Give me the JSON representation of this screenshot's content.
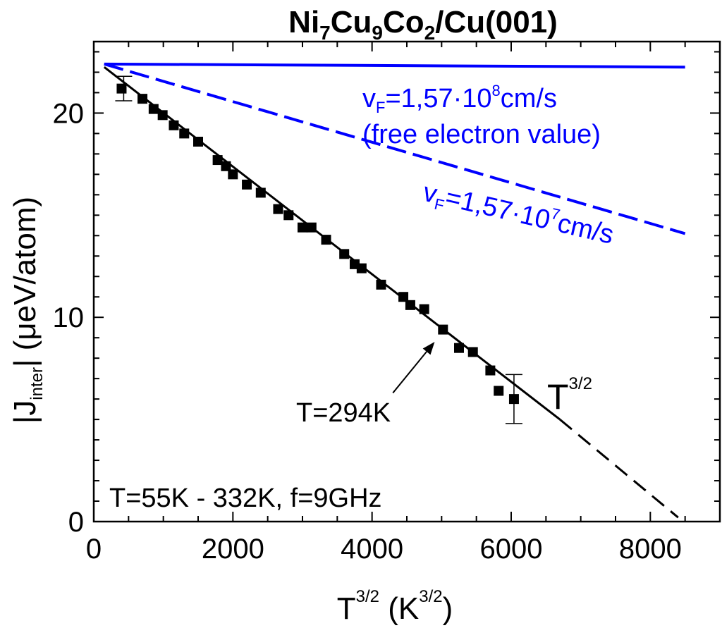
{
  "chart_data": {
    "type": "scatter",
    "title": {
      "base": "Ni",
      "parts": [
        {
          "text": "Ni",
          "sub": "7"
        },
        {
          "text": "Cu",
          "sub": "9"
        },
        {
          "text": "Co",
          "sub": "2"
        },
        {
          "text": "/Cu(001)",
          "sub": ""
        }
      ]
    },
    "xlabel": {
      "main": "T",
      "sup": "3/2",
      "rest": " (K",
      "sup2": "3/2",
      "close": ")"
    },
    "ylabel": {
      "open": "|J",
      "sub": "inter",
      "rest": "| (μeV/atom)"
    },
    "xlim": [
      0,
      9000
    ],
    "ylim": [
      0,
      23.5
    ],
    "x_ticks": [
      0,
      2000,
      4000,
      6000,
      8000
    ],
    "x_tick_labels": [
      "0",
      "2000",
      "4000",
      "6000",
      "8000"
    ],
    "y_ticks": [
      0,
      10,
      20
    ],
    "y_tick_labels": [
      "0",
      "10",
      "20"
    ],
    "x_minor_step": 500,
    "y_minor_step": 2,
    "grid": false,
    "series": [
      {
        "marker": "square",
        "color": "#000000",
        "points": [
          [
            400,
            21.2
          ],
          [
            700,
            20.7
          ],
          [
            860,
            20.2
          ],
          [
            990,
            19.9
          ],
          [
            1150,
            19.4
          ],
          [
            1300,
            19.0
          ],
          [
            1500,
            18.6
          ],
          [
            1780,
            17.7
          ],
          [
            1900,
            17.4
          ],
          [
            2000,
            17.0
          ],
          [
            2200,
            16.5
          ],
          [
            2400,
            16.1
          ],
          [
            2650,
            15.3
          ],
          [
            2800,
            15.0
          ],
          [
            3000,
            14.4
          ],
          [
            3130,
            14.4
          ],
          [
            3340,
            13.8
          ],
          [
            3600,
            13.1
          ],
          [
            3750,
            12.6
          ],
          [
            3850,
            12.4
          ],
          [
            4130,
            11.6
          ],
          [
            4450,
            11.0
          ],
          [
            4550,
            10.6
          ],
          [
            4750,
            10.4
          ],
          [
            5020,
            9.4
          ],
          [
            5250,
            8.5
          ],
          [
            5450,
            8.3
          ],
          [
            5700,
            7.4
          ],
          [
            5820,
            6.4
          ],
          [
            6040,
            6.0
          ]
        ]
      }
    ],
    "error_bars": [
      {
        "x": 430,
        "y": 21.2,
        "low": 20.6,
        "high": 21.8
      },
      {
        "x": 6040,
        "y": 6.0,
        "low": 4.8,
        "high": 7.2
      }
    ],
    "lines": [
      {
        "name": "fit-solid",
        "color": "#000000",
        "style": "solid",
        "points": [
          [
            150,
            22.25
          ],
          [
            6700,
            5.0
          ]
        ]
      },
      {
        "name": "fit-dashed",
        "color": "#000000",
        "style": "dashed",
        "points": [
          [
            6700,
            5.0
          ],
          [
            8400,
            0.2
          ]
        ]
      },
      {
        "name": "vf-1.57e8",
        "color": "#0000ff",
        "style": "solid",
        "points": [
          [
            150,
            22.4
          ],
          [
            8500,
            22.25
          ]
        ]
      },
      {
        "name": "vf-1.57e7",
        "color": "#0000ff",
        "style": "dashed",
        "points": [
          [
            150,
            22.4
          ],
          [
            8500,
            14.1
          ]
        ]
      }
    ],
    "annotations": {
      "vf8_prefix": "v",
      "vf8_sub": "F",
      "vf8_mid": "=1,57·10",
      "vf8_sup": "8",
      "vf8_unit": "cm/s",
      "free_electron": "(free electron value)",
      "vf7_prefix": "v",
      "vf7_sub": "F",
      "vf7_mid": "=1,57·10",
      "vf7_sup": "7",
      "vf7_unit": "cm/s",
      "t32_main": "T",
      "t32_sup": "3/2",
      "t294": "T=294K",
      "conditions": "T=55K - 332K, f=9GHz"
    },
    "arrow": {
      "from": [
        4300,
        6.3
      ],
      "to": [
        4900,
        8.8
      ]
    }
  }
}
